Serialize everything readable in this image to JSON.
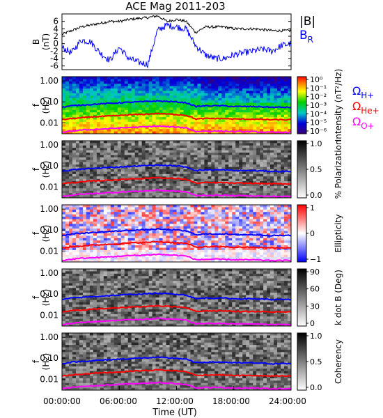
{
  "title": "ACE Mag 2011-203",
  "colors": {
    "blue": "#0000ff",
    "red": "#ff0000",
    "magenta": "#ff00ff",
    "black": "#000000"
  },
  "chart_data": [
    {
      "type": "line",
      "panel": "B",
      "ylabel": "B (nT)",
      "yticks": [
        "6",
        "4",
        "2",
        "0",
        "-2",
        "-4",
        "-6"
      ],
      "ylim": [
        -7,
        8
      ],
      "x": [
        0,
        1,
        2,
        3,
        4,
        5,
        6,
        7,
        8,
        9,
        10,
        11,
        12,
        13,
        14,
        15,
        16,
        17,
        18,
        19,
        20,
        21,
        22,
        23,
        24
      ],
      "series": [
        {
          "name": "|B|",
          "color": "#000000",
          "values": [
            2.5,
            3.5,
            4.5,
            5.0,
            5.5,
            6.0,
            6.0,
            6.5,
            6.8,
            7.0,
            7.5,
            6.0,
            6.5,
            6.0,
            3.0,
            4.5,
            4.5,
            4.5,
            4.0,
            4.0,
            4.0,
            3.8,
            3.5,
            3.5,
            3.5
          ]
        },
        {
          "name": "B_R",
          "color": "#0000ff",
          "values": [
            -1.0,
            -2.5,
            1.0,
            0.5,
            -2.5,
            -4.5,
            -1.0,
            -4.0,
            -5.0,
            -5.5,
            3.5,
            5.0,
            4.5,
            4.0,
            -0.5,
            -3.0,
            -4.0,
            -4.0,
            -3.0,
            -2.5,
            -2.0,
            -1.5,
            -2.0,
            -0.5,
            0.0
          ]
        }
      ],
      "legend": [
        {
          "label": "|B|",
          "color": "#000000"
        },
        {
          "label": "B",
          "sub": "R",
          "color": "#0000ff"
        }
      ]
    },
    {
      "type": "heatmap",
      "panel": "Intensity",
      "ylabel": "f (Hz)",
      "yticks": [
        "1.00",
        "0.10",
        "0.01"
      ],
      "colorbar_label": "Intensity (nT²/Hz)",
      "colorbar_ticks": [
        "10⁰",
        "10⁻¹",
        "10⁻²",
        "10⁻³",
        "10⁻⁴",
        "10⁻⁵",
        "10⁻⁶"
      ],
      "legend": [
        {
          "label": "Ω",
          "sub": "H+",
          "color": "#0000ff"
        },
        {
          "label": "Ω",
          "sub": "He+",
          "color": "#ff0000"
        },
        {
          "label": "Ω",
          "sub": "O+",
          "color": "#ff00ff"
        }
      ]
    },
    {
      "type": "heatmap",
      "panel": "Polarization",
      "ylabel": "f (Hz)",
      "yticks": [
        "1.00",
        "0.10",
        "0.01"
      ],
      "colorbar_label": "% Polarization",
      "colorbar_ticks": [
        "1.0",
        "0.5",
        "0.0"
      ]
    },
    {
      "type": "heatmap",
      "panel": "Ellipticity",
      "ylabel": "f (Hz)",
      "yticks": [
        "1.00",
        "0.10",
        "0.01"
      ],
      "colorbar_label": "Ellipticity",
      "colorbar_ticks": [
        "1",
        "0",
        "−1"
      ]
    },
    {
      "type": "heatmap",
      "panel": "k dot B",
      "ylabel": "f (Hz)",
      "yticks": [
        "1.00",
        "0.10",
        "0.01"
      ],
      "colorbar_label": "k dot B (Deg)",
      "colorbar_ticks": [
        "90",
        "60",
        "30",
        "0"
      ]
    },
    {
      "type": "heatmap",
      "panel": "Coherency",
      "ylabel": "f (Hz)",
      "yticks": [
        "1.00",
        "0.10",
        "0.01"
      ],
      "colorbar_label": "Coherency",
      "colorbar_ticks": [
        "1.0",
        "0.5",
        "0.0"
      ]
    }
  ],
  "gyrofrequencies": {
    "x": [
      0,
      1,
      2,
      3,
      4,
      5,
      6,
      7,
      8,
      9,
      10,
      11,
      12,
      13,
      14,
      15,
      16,
      17,
      18,
      19,
      20,
      21,
      22,
      23,
      24
    ],
    "H+": [
      0.055,
      0.065,
      0.07,
      0.075,
      0.08,
      0.085,
      0.09,
      0.095,
      0.1,
      0.105,
      0.11,
      0.105,
      0.1,
      0.09,
      0.06,
      0.065,
      0.065,
      0.065,
      0.06,
      0.06,
      0.06,
      0.058,
      0.055,
      0.055,
      0.055
    ],
    "He+": [
      0.014,
      0.016,
      0.017,
      0.019,
      0.02,
      0.021,
      0.022,
      0.024,
      0.025,
      0.026,
      0.028,
      0.026,
      0.025,
      0.023,
      0.015,
      0.016,
      0.016,
      0.016,
      0.015,
      0.015,
      0.015,
      0.0145,
      0.014,
      0.014,
      0.014
    ],
    "O+": [
      0.0035,
      0.004,
      0.0045,
      0.0047,
      0.005,
      0.0053,
      0.0056,
      0.006,
      0.0062,
      0.0065,
      0.007,
      0.0065,
      0.0062,
      0.0058,
      0.0038,
      0.004,
      0.004,
      0.004,
      0.0038,
      0.0038,
      0.0038,
      0.0036,
      0.0035,
      0.0035,
      0.0035
    ]
  },
  "xaxis": {
    "label": "Time (UT)",
    "ticks": [
      "00:00:00",
      "06:00:00",
      "12:00:00",
      "18:00:00",
      "24:00:00"
    ],
    "range_hours": [
      0,
      24
    ]
  }
}
